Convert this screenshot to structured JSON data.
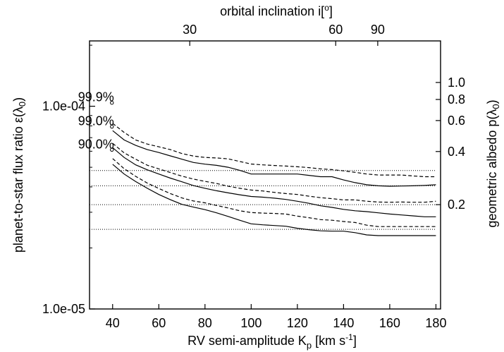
{
  "chart_data": {
    "type": "line",
    "title": "",
    "xlabel": "RV semi-amplitude K_p [km s^-1]",
    "ylabel": "planet-to-star flux ratio ε(λ0)",
    "top_axis_label": "orbital inclination i[o]",
    "right_axis_label": "geometric albedo p(λ0)",
    "xlim": [
      30,
      182
    ],
    "ylim": [
      1e-05,
      0.00021
    ],
    "yscale": "log",
    "grid": false,
    "x_ticks": [
      "40",
      "60",
      "80",
      "100",
      "120",
      "140",
      "160",
      "180"
    ],
    "y_ticks": [
      {
        "value": 0.0001,
        "label": "1.0e-04"
      },
      {
        "value": 1e-05,
        "label": "1.0e-05"
      }
    ],
    "top_ticks": [
      {
        "label": "30",
        "kp": 73.4
      },
      {
        "label": "60",
        "kp": 136.6
      },
      {
        "label": "90",
        "kp": 154.8
      }
    ],
    "right_ticks": [
      {
        "label": "1.0",
        "flux": 0.000131
      },
      {
        "label": "0.8",
        "flux": 0.000108
      },
      {
        "label": "0.6",
        "flux": 8.5e-05
      },
      {
        "label": "0.4",
        "flux": 5.98e-05
      },
      {
        "label": "0.2",
        "flux": 3.27e-05
      }
    ],
    "level_labels": [
      {
        "text": "99.9%",
        "x": 40,
        "y": 0.000104
      },
      {
        "text": "99.0%",
        "x": 40,
        "y": 7.93e-05
      },
      {
        "text": "90.0%",
        "x": 40,
        "y": 6.1e-05
      }
    ],
    "annotations": [
      "99.9%",
      "99.0%",
      "90.0%"
    ],
    "x": [
      40,
      45,
      50,
      55,
      60,
      65,
      70,
      75,
      80,
      85,
      90,
      95,
      100,
      105,
      110,
      115,
      120,
      125,
      130,
      135,
      140,
      145,
      150,
      155,
      160,
      165,
      170,
      175,
      180
    ],
    "series": [
      {
        "style": "dashed",
        "values": [
          8.23e-05,
          7.43e-05,
          6.82e-05,
          6.51e-05,
          6.31e-05,
          6.11e-05,
          5.84e-05,
          5.68e-05,
          5.59e-05,
          5.56e-05,
          5.5e-05,
          5.34e-05,
          5.19e-05,
          5.14e-05,
          5.1e-05,
          5.07e-05,
          5.03e-05,
          4.98e-05,
          4.91e-05,
          4.87e-05,
          4.8e-05,
          4.72e-05,
          4.63e-05,
          4.58e-05,
          4.58e-05,
          4.58e-05,
          4.53e-05,
          4.49e-05,
          4.49e-05
        ]
      },
      {
        "style": "solid",
        "values": [
          7.58e-05,
          6.82e-05,
          6.41e-05,
          6.11e-05,
          5.91e-05,
          5.69e-05,
          5.48e-05,
          5.28e-05,
          5.18e-05,
          5.11e-05,
          5e-05,
          4.83e-05,
          4.63e-05,
          4.63e-05,
          4.63e-05,
          4.63e-05,
          4.63e-05,
          4.56e-05,
          4.49e-05,
          4.49e-05,
          4.33e-05,
          4.2e-05,
          4.1e-05,
          4.05e-05,
          4.03e-05,
          4.04e-05,
          4.05e-05,
          4.07e-05,
          4.1e-05
        ]
      },
      {
        "style": "dashed",
        "values": [
          6.56e-05,
          5.89e-05,
          5.48e-05,
          5.12e-05,
          4.91e-05,
          4.71e-05,
          4.52e-05,
          4.37e-05,
          4.26e-05,
          4.16e-05,
          4.03e-05,
          3.94e-05,
          3.86e-05,
          3.82e-05,
          3.76e-05,
          3.71e-05,
          3.67e-05,
          3.6e-05,
          3.54e-05,
          3.5e-05,
          3.45e-05,
          3.45e-05,
          3.4e-05,
          3.37e-05,
          3.36e-05,
          3.37e-05,
          3.36e-05,
          3.36e-05,
          3.4e-05
        ]
      },
      {
        "style": "solid",
        "values": [
          6.25e-05,
          5.59e-05,
          5.14e-05,
          4.86e-05,
          4.63e-05,
          4.42e-05,
          4.24e-05,
          4.06e-05,
          3.94e-05,
          3.83e-05,
          3.74e-05,
          3.66e-05,
          3.59e-05,
          3.56e-05,
          3.52e-05,
          3.47e-05,
          3.4e-05,
          3.32e-05,
          3.23e-05,
          3.17e-05,
          3.1e-05,
          3.05e-05,
          3.02e-05,
          2.98e-05,
          2.94e-05,
          2.91e-05,
          2.88e-05,
          2.85e-05,
          2.85e-05
        ]
      },
      {
        "style": "dashed",
        "values": [
          5.52e-05,
          4.92e-05,
          4.51e-05,
          4.18e-05,
          3.93e-05,
          3.71e-05,
          3.53e-05,
          3.41e-05,
          3.34e-05,
          3.24e-05,
          3.15e-05,
          3.05e-05,
          2.99e-05,
          2.97e-05,
          2.96e-05,
          2.94e-05,
          2.87e-05,
          2.82e-05,
          2.76e-05,
          2.74e-05,
          2.7e-05,
          2.67e-05,
          2.59e-05,
          2.55e-05,
          2.55e-05,
          2.55e-05,
          2.55e-05,
          2.55e-05,
          2.55e-05
        ]
      },
      {
        "style": "solid",
        "values": [
          5.17e-05,
          4.63e-05,
          4.25e-05,
          3.94e-05,
          3.67e-05,
          3.46e-05,
          3.28e-05,
          3.18e-05,
          3.09e-05,
          2.98e-05,
          2.86e-05,
          2.74e-05,
          2.63e-05,
          2.6e-05,
          2.58e-05,
          2.56e-05,
          2.5e-05,
          2.46e-05,
          2.43e-05,
          2.42e-05,
          2.42e-05,
          2.38e-05,
          2.32e-05,
          2.3e-05,
          2.3e-05,
          2.3e-05,
          2.3e-05,
          2.3e-05,
          2.3e-05
        ]
      }
    ],
    "reference_lines": [
      {
        "style": "dotted",
        "y": 4.82e-05,
        "x_range": [
          30,
          180
        ]
      },
      {
        "style": "dotted",
        "y": 4.05e-05,
        "x_range": [
          30,
          180
        ]
      },
      {
        "style": "dotted",
        "y": 3.27e-05,
        "x_range": [
          30,
          180
        ]
      },
      {
        "style": "dotted",
        "y": 2.47e-05,
        "x_range": [
          30,
          180
        ]
      }
    ]
  }
}
